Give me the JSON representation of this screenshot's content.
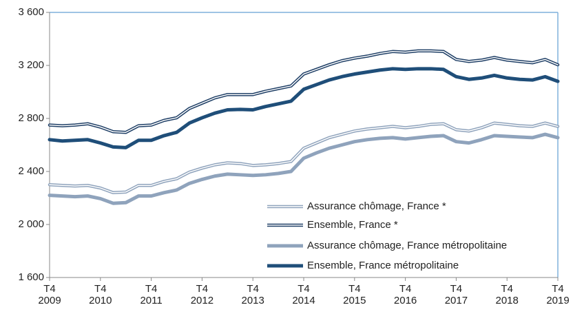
{
  "chart_data": {
    "type": "line",
    "categories": [
      "T4 2009",
      null,
      null,
      null,
      "T4 2010",
      null,
      null,
      null,
      "T4 2011",
      null,
      null,
      null,
      "T4 2012",
      null,
      null,
      null,
      "T4 2013",
      null,
      null,
      null,
      "T4 2014",
      null,
      null,
      null,
      "T4 2015",
      null,
      null,
      null,
      "T4 2016",
      null,
      null,
      null,
      "T4 2017",
      null,
      null,
      null,
      "T4 2018",
      null,
      null,
      null,
      "T4 2019"
    ],
    "series": [
      {
        "name": "Assurance chômage, France *",
        "color": "#8fa3bc",
        "style": "double",
        "values": [
          2300,
          2295,
          2290,
          2295,
          2275,
          2240,
          2245,
          2295,
          2295,
          2325,
          2345,
          2395,
          2425,
          2450,
          2465,
          2460,
          2445,
          2450,
          2460,
          2475,
          2575,
          2615,
          2655,
          2680,
          2705,
          2720,
          2730,
          2740,
          2730,
          2740,
          2755,
          2760,
          2715,
          2705,
          2730,
          2765,
          2755,
          2745,
          2740,
          2765,
          2740
        ]
      },
      {
        "name": "Ensemble, France *",
        "color": "#1f3f66",
        "style": "double",
        "values": [
          2750,
          2745,
          2750,
          2760,
          2735,
          2700,
          2695,
          2745,
          2750,
          2785,
          2805,
          2875,
          2915,
          2955,
          2980,
          2980,
          2980,
          3005,
          3025,
          3045,
          3135,
          3170,
          3205,
          3235,
          3255,
          3270,
          3290,
          3305,
          3300,
          3310,
          3310,
          3305,
          3245,
          3230,
          3240,
          3260,
          3240,
          3230,
          3220,
          3245,
          3205
        ]
      },
      {
        "name": "Assurance chômage, France métropolitaine",
        "color": "#8fa3bc",
        "style": "solid",
        "values": [
          2220,
          2215,
          2210,
          2215,
          2195,
          2160,
          2165,
          2215,
          2215,
          2240,
          2260,
          2310,
          2340,
          2365,
          2380,
          2375,
          2370,
          2375,
          2385,
          2400,
          2500,
          2540,
          2575,
          2600,
          2625,
          2640,
          2650,
          2655,
          2645,
          2655,
          2665,
          2670,
          2625,
          2615,
          2640,
          2670,
          2665,
          2660,
          2655,
          2680,
          2655
        ]
      },
      {
        "name": "Ensemble, France métropolitaine",
        "color": "#1f4e79",
        "style": "solid",
        "values": [
          2640,
          2630,
          2635,
          2640,
          2615,
          2585,
          2580,
          2635,
          2635,
          2670,
          2695,
          2765,
          2805,
          2840,
          2865,
          2868,
          2865,
          2890,
          2910,
          2930,
          3020,
          3055,
          3090,
          3115,
          3135,
          3150,
          3165,
          3175,
          3170,
          3175,
          3175,
          3170,
          3115,
          3095,
          3105,
          3125,
          3105,
          3095,
          3090,
          3115,
          3080
        ]
      }
    ],
    "ylim": [
      1600,
      3600
    ],
    "yticks": [
      {
        "value": 1600,
        "label": "1 600"
      },
      {
        "value": 2000,
        "label": "2 000"
      },
      {
        "value": 2400,
        "label": "2 400"
      },
      {
        "value": 2800,
        "label": "2 800"
      },
      {
        "value": 3200,
        "label": "3 200"
      },
      {
        "value": 3600,
        "label": "3 600"
      }
    ],
    "legend": "lower right"
  }
}
